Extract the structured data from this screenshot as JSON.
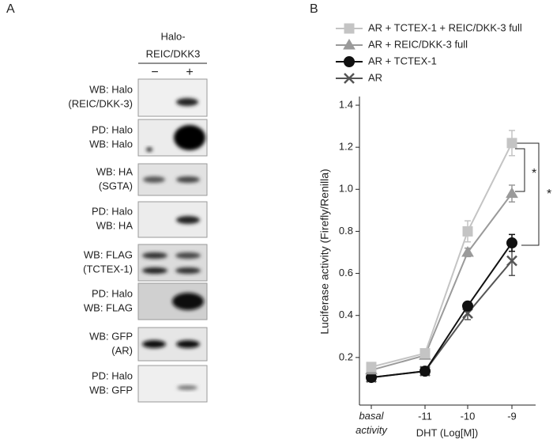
{
  "panel_a": {
    "label": "A",
    "header": {
      "lines": [
        "Halo-",
        "REIC/DKK3"
      ],
      "lanes": [
        "−",
        "+"
      ]
    },
    "blots": [
      {
        "lines": [
          "WB: Halo",
          "(REIC/DKK-3)"
        ]
      },
      {
        "lines": [
          "PD: Halo",
          "WB: Halo"
        ]
      },
      {
        "lines": [
          "WB: HA",
          "(SGTA)"
        ]
      },
      {
        "lines": [
          "PD: Halo",
          "WB: HA"
        ]
      },
      {
        "lines": [
          "WB: FLAG",
          "(TCTEX-1)"
        ]
      },
      {
        "lines": [
          "PD: Halo",
          "WB: FLAG"
        ]
      },
      {
        "lines": [
          "WB: GFP",
          "(AR)"
        ]
      },
      {
        "lines": [
          "PD: Halo",
          "WB: GFP"
        ]
      }
    ]
  },
  "panel_b_label": "B",
  "chart_data": {
    "type": "line",
    "x_label": "DHT (Log[M])",
    "y_label": "Luciferase activity (Firefly/Renilla)",
    "categories": [
      "basal activity",
      "-11",
      "-10",
      "-9"
    ],
    "ylim": [
      0,
      1.4
    ],
    "yticks": [
      0.2,
      0.4,
      0.6,
      0.8,
      {
        "value": 1,
        "label": "1.0"
      },
      1.2,
      1.4
    ],
    "series": [
      {
        "name": "AR + TCTEX-1 + REIC/DKK-3 full",
        "color": "#c4c4c4",
        "marker": "square",
        "values": [
          0.155,
          0.22,
          0.8,
          1.22
        ],
        "errors": [
          0.01,
          0.02,
          0.05,
          0.06
        ]
      },
      {
        "name": "AR + REIC/DKK-3 full",
        "color": "#9a9a9a",
        "marker": "triangle",
        "values": [
          0.14,
          0.21,
          0.7,
          0.98
        ],
        "errors": [
          0.01,
          0.01,
          0.02,
          0.04
        ]
      },
      {
        "name": "AR + TCTEX-1",
        "color": "#111111",
        "marker": "circle",
        "values": [
          0.105,
          0.135,
          0.445,
          0.745
        ],
        "errors": [
          0.01,
          0.01,
          0.01,
          0.04
        ]
      },
      {
        "name": "AR",
        "color": "#555555",
        "marker": "cross",
        "values": [
          0.105,
          0.135,
          0.41,
          0.66
        ],
        "errors": [
          0.01,
          0.01,
          0.03,
          0.07
        ]
      }
    ],
    "annotations": [
      "*",
      "*"
    ]
  }
}
